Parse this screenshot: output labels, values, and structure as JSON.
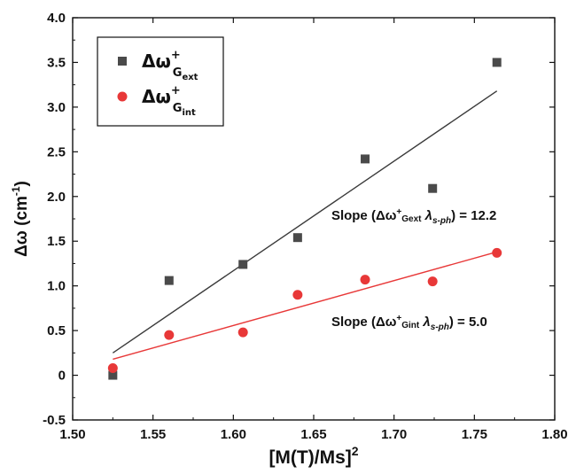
{
  "chart_data": {
    "type": "scatter",
    "xlabel": "[M(T)/Ms]",
    "xlabel_sup": "2",
    "ylabel": "Δω (cm",
    "ylabel_sup": "-1",
    "ylabel_tail": ")",
    "xlim": [
      1.5,
      1.8
    ],
    "ylim": [
      -0.5,
      4.0
    ],
    "x_ticks": [
      "1.50",
      "1.55",
      "1.60",
      "1.65",
      "1.70",
      "1.75",
      "1.80"
    ],
    "y_ticks": [
      "-0.5",
      "0",
      "0.5",
      "1.0",
      "1.5",
      "2.0",
      "2.5",
      "3.0",
      "3.5",
      "4.0"
    ],
    "grid": false,
    "legend_position": "top-left",
    "series": [
      {
        "name_main": "Δω",
        "name_sup": "+",
        "name_sub": "G",
        "name_subsub": "ext",
        "marker": "square",
        "color": "#4a4a4a",
        "x": [
          1.525,
          1.56,
          1.606,
          1.64,
          1.682,
          1.724,
          1.764
        ],
        "y": [
          0.0,
          1.06,
          1.24,
          1.54,
          2.42,
          2.09,
          3.5
        ],
        "fit": {
          "x": [
            1.525,
            1.764
          ],
          "y": [
            0.25,
            3.18
          ],
          "color": "#3a3a3a"
        }
      },
      {
        "name_main": "Δω",
        "name_sup": "+",
        "name_sub": "G",
        "name_subsub": "int",
        "marker": "circle",
        "color": "#e83838",
        "x": [
          1.525,
          1.56,
          1.606,
          1.64,
          1.682,
          1.724,
          1.764
        ],
        "y": [
          0.08,
          0.45,
          0.48,
          0.9,
          1.07,
          1.05,
          1.37
        ],
        "fit": {
          "x": [
            1.525,
            1.764
          ],
          "y": [
            0.18,
            1.38
          ],
          "color": "#e83838"
        }
      }
    ],
    "annotations": [
      {
        "prefix": "Slope (Δω",
        "sup": "+",
        "sub": "Gext",
        "lambda": " λ",
        "lambda_sub": "s-ph",
        "suffix": ") = 12.2",
        "x": 1.661,
        "y": 1.74
      },
      {
        "prefix": "Slope (Δω",
        "sup": "+",
        "sub": "Gint",
        "lambda": " λ",
        "lambda_sub": "s-ph",
        "suffix": ") = 5.0",
        "x": 1.661,
        "y": 0.55
      }
    ]
  }
}
